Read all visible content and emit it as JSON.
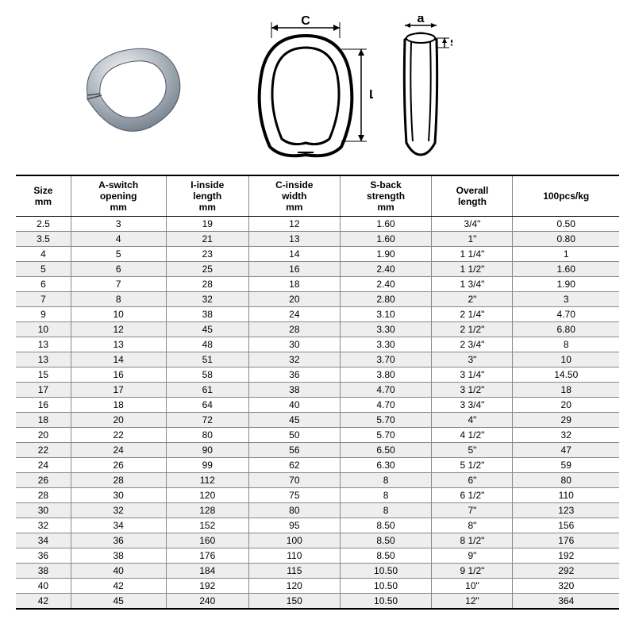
{
  "diagram": {
    "labels": {
      "C": "C",
      "L": "L",
      "a": "a",
      "s": "s"
    }
  },
  "table": {
    "columns": [
      "Size\nmm",
      "A-switch\nopening\nmm",
      "I-inside\nlength\nmm",
      "C-inside\nwidth\nmm",
      "S-back\nstrength\nmm",
      "Overall\nlength",
      "100pcs/kg"
    ],
    "rows": [
      [
        "2.5",
        "3",
        "19",
        "12",
        "1.60",
        "3/4\"",
        "0.50"
      ],
      [
        "3.5",
        "4",
        "21",
        "13",
        "1.60",
        "1\"",
        "0.80"
      ],
      [
        "4",
        "5",
        "23",
        "14",
        "1.90",
        "1 1/4\"",
        "1"
      ],
      [
        "5",
        "6",
        "25",
        "16",
        "2.40",
        "1 1/2\"",
        "1.60"
      ],
      [
        "6",
        "7",
        "28",
        "18",
        "2.40",
        "1 3/4\"",
        "1.90"
      ],
      [
        "7",
        "8",
        "32",
        "20",
        "2.80",
        "2\"",
        "3"
      ],
      [
        "9",
        "10",
        "38",
        "24",
        "3.10",
        "2 1/4\"",
        "4.70"
      ],
      [
        "10",
        "12",
        "45",
        "28",
        "3.30",
        "2 1/2\"",
        "6.80"
      ],
      [
        "13",
        "13",
        "48",
        "30",
        "3.30",
        "2 3/4\"",
        "8"
      ],
      [
        "13",
        "14",
        "51",
        "32",
        "3.70",
        "3\"",
        "10"
      ],
      [
        "15",
        "16",
        "58",
        "36",
        "3.80",
        "3 1/4\"",
        "14.50"
      ],
      [
        "17",
        "17",
        "61",
        "38",
        "4.70",
        "3 1/2\"",
        "18"
      ],
      [
        "16",
        "18",
        "64",
        "40",
        "4.70",
        "3 3/4\"",
        "20"
      ],
      [
        "18",
        "20",
        "72",
        "45",
        "5.70",
        "4\"",
        "29"
      ],
      [
        "20",
        "22",
        "80",
        "50",
        "5.70",
        "4 1/2\"",
        "32"
      ],
      [
        "22",
        "24",
        "90",
        "56",
        "6.50",
        "5\"",
        "47"
      ],
      [
        "24",
        "26",
        "99",
        "62",
        "6.30",
        "5 1/2\"",
        "59"
      ],
      [
        "26",
        "28",
        "112",
        "70",
        "8",
        "6\"",
        "80"
      ],
      [
        "28",
        "30",
        "120",
        "75",
        "8",
        "6 1/2\"",
        "110"
      ],
      [
        "30",
        "32",
        "128",
        "80",
        "8",
        "7\"",
        "123"
      ],
      [
        "32",
        "34",
        "152",
        "95",
        "8.50",
        "8\"",
        "156"
      ],
      [
        "34",
        "36",
        "160",
        "100",
        "8.50",
        "8 1/2\"",
        "176"
      ],
      [
        "36",
        "38",
        "176",
        "110",
        "8.50",
        "9\"",
        "192"
      ],
      [
        "38",
        "40",
        "184",
        "115",
        "10.50",
        "9 1/2\"",
        "292"
      ],
      [
        "40",
        "42",
        "192",
        "120",
        "10.50",
        "10\"",
        "320"
      ],
      [
        "42",
        "45",
        "240",
        "150",
        "10.50",
        "12\"",
        "364"
      ]
    ],
    "alt_row_bg": "#eeeeee",
    "border_color": "#888888",
    "header_border": "#000000"
  }
}
